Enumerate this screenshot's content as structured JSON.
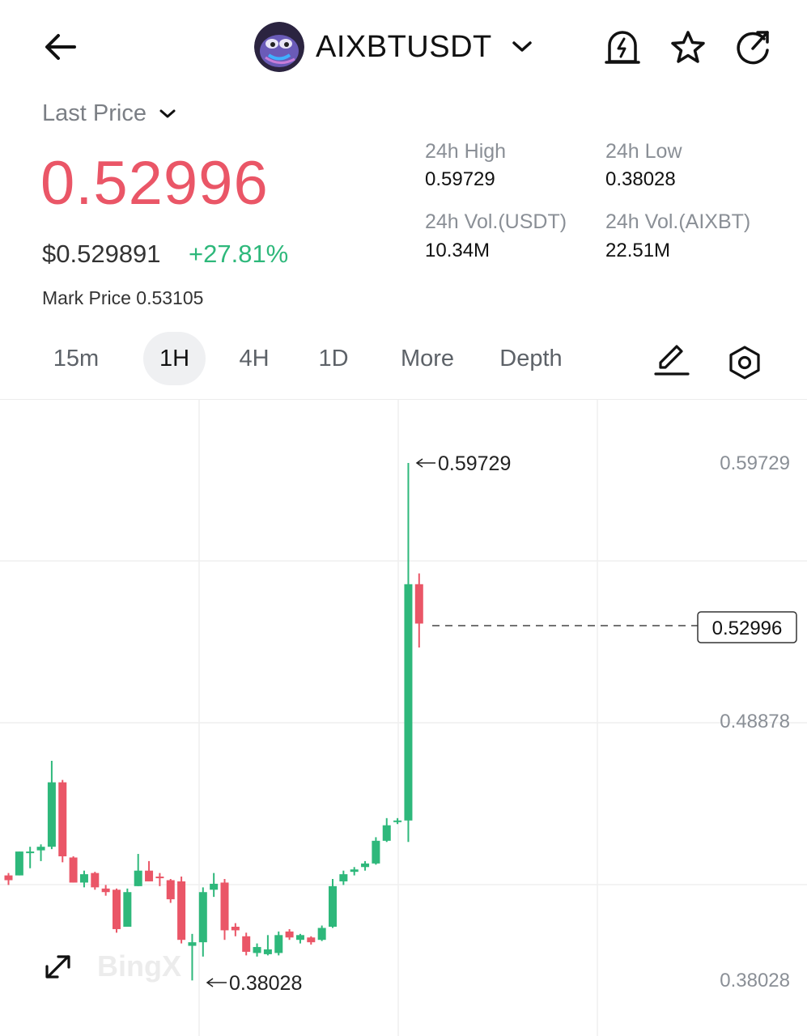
{
  "header": {
    "pair": "AIXBTUSDT",
    "icons": [
      "back-arrow-icon",
      "chevron-down-icon",
      "price-alert-icon",
      "star-icon",
      "share-icon"
    ]
  },
  "price": {
    "label": "Last Price",
    "last": "0.52996",
    "usd": "$0.529891",
    "change": "+27.81%",
    "mark_label": "Mark Price",
    "mark_value": "0.53105",
    "colors": {
      "down": "#ea5667",
      "up": "#2eb87b"
    }
  },
  "stats": {
    "high_label": "24h High",
    "high_value": "0.59729",
    "low_label": "24h Low",
    "low_value": "0.38028",
    "vol_usdt_label": "24h Vol.(USDT)",
    "vol_usdt_value": "10.34M",
    "vol_base_label": "24h Vol.(AIXBT)",
    "vol_base_value": "22.51M"
  },
  "tabs": [
    {
      "label": "15m",
      "active": false
    },
    {
      "label": "1H",
      "active": true
    },
    {
      "label": "4H",
      "active": false
    },
    {
      "label": "1D",
      "active": false
    },
    {
      "label": "More",
      "active": false
    },
    {
      "label": "Depth",
      "active": false
    }
  ],
  "tools": [
    "draw-pencil-icon",
    "settings-hexagon-icon"
  ],
  "chart_data": {
    "type": "candlestick",
    "interval": "1H",
    "y_ticks": [
      "0.59729",
      "0.48878",
      "0.38028"
    ],
    "current_price_label": "0.52996",
    "high_marker": "0.59729",
    "low_marker": "0.38028",
    "watermark": "BingX",
    "candles": [
      {
        "o": 0.4245,
        "h": 0.4255,
        "l": 0.4205,
        "c": 0.4225
      },
      {
        "o": 0.4245,
        "h": 0.4345,
        "l": 0.4245,
        "c": 0.4345
      },
      {
        "o": 0.4345,
        "h": 0.4365,
        "l": 0.4275,
        "c": 0.4345
      },
      {
        "o": 0.435,
        "h": 0.4375,
        "l": 0.4305,
        "c": 0.4365
      },
      {
        "o": 0.4365,
        "h": 0.4725,
        "l": 0.4355,
        "c": 0.4635
      },
      {
        "o": 0.4635,
        "h": 0.4645,
        "l": 0.43,
        "c": 0.4325
      },
      {
        "o": 0.432,
        "h": 0.4325,
        "l": 0.4215,
        "c": 0.4215
      },
      {
        "o": 0.4215,
        "h": 0.4265,
        "l": 0.4195,
        "c": 0.425
      },
      {
        "o": 0.4255,
        "h": 0.426,
        "l": 0.4185,
        "c": 0.4195
      },
      {
        "o": 0.419,
        "h": 0.4205,
        "l": 0.416,
        "c": 0.4175
      },
      {
        "o": 0.4185,
        "h": 0.419,
        "l": 0.4005,
        "c": 0.402
      },
      {
        "o": 0.403,
        "h": 0.419,
        "l": 0.403,
        "c": 0.4175
      },
      {
        "o": 0.42,
        "h": 0.4335,
        "l": 0.42,
        "c": 0.4265
      },
      {
        "o": 0.4265,
        "h": 0.4305,
        "l": 0.422,
        "c": 0.422
      },
      {
        "o": 0.424,
        "h": 0.4255,
        "l": 0.42,
        "c": 0.4235
      },
      {
        "o": 0.4225,
        "h": 0.423,
        "l": 0.413,
        "c": 0.4145
      },
      {
        "o": 0.422,
        "h": 0.424,
        "l": 0.396,
        "c": 0.3975
      },
      {
        "o": 0.395,
        "h": 0.4,
        "l": 0.3805,
        "c": 0.3965
      },
      {
        "o": 0.3965,
        "h": 0.4195,
        "l": 0.3905,
        "c": 0.4175
      },
      {
        "o": 0.4185,
        "h": 0.4255,
        "l": 0.4155,
        "c": 0.421
      },
      {
        "o": 0.4215,
        "h": 0.423,
        "l": 0.3975,
        "c": 0.4015
      },
      {
        "o": 0.403,
        "h": 0.4045,
        "l": 0.399,
        "c": 0.4015
      },
      {
        "o": 0.399,
        "h": 0.4005,
        "l": 0.391,
        "c": 0.3925
      },
      {
        "o": 0.392,
        "h": 0.396,
        "l": 0.3905,
        "c": 0.3945
      },
      {
        "o": 0.3915,
        "h": 0.3995,
        "l": 0.391,
        "c": 0.3935
      },
      {
        "o": 0.392,
        "h": 0.401,
        "l": 0.391,
        "c": 0.3995
      },
      {
        "o": 0.401,
        "h": 0.402,
        "l": 0.3975,
        "c": 0.3985
      },
      {
        "o": 0.3975,
        "h": 0.4,
        "l": 0.396,
        "c": 0.3995
      },
      {
        "o": 0.3985,
        "h": 0.399,
        "l": 0.3955,
        "c": 0.3965
      },
      {
        "o": 0.3975,
        "h": 0.4035,
        "l": 0.397,
        "c": 0.4025
      },
      {
        "o": 0.403,
        "h": 0.423,
        "l": 0.4025,
        "c": 0.42
      },
      {
        "o": 0.422,
        "h": 0.4265,
        "l": 0.4205,
        "c": 0.425
      },
      {
        "o": 0.426,
        "h": 0.428,
        "l": 0.4245,
        "c": 0.427
      },
      {
        "o": 0.428,
        "h": 0.4305,
        "l": 0.4265,
        "c": 0.4295
      },
      {
        "o": 0.4295,
        "h": 0.4405,
        "l": 0.429,
        "c": 0.439
      },
      {
        "o": 0.439,
        "h": 0.4485,
        "l": 0.4385,
        "c": 0.4455
      },
      {
        "o": 0.4475,
        "h": 0.4485,
        "l": 0.446,
        "c": 0.4475
      },
      {
        "o": 0.4475,
        "h": 0.5973,
        "l": 0.4385,
        "c": 0.5465
      },
      {
        "o": 0.5465,
        "h": 0.551,
        "l": 0.52,
        "c": 0.53
      }
    ]
  }
}
